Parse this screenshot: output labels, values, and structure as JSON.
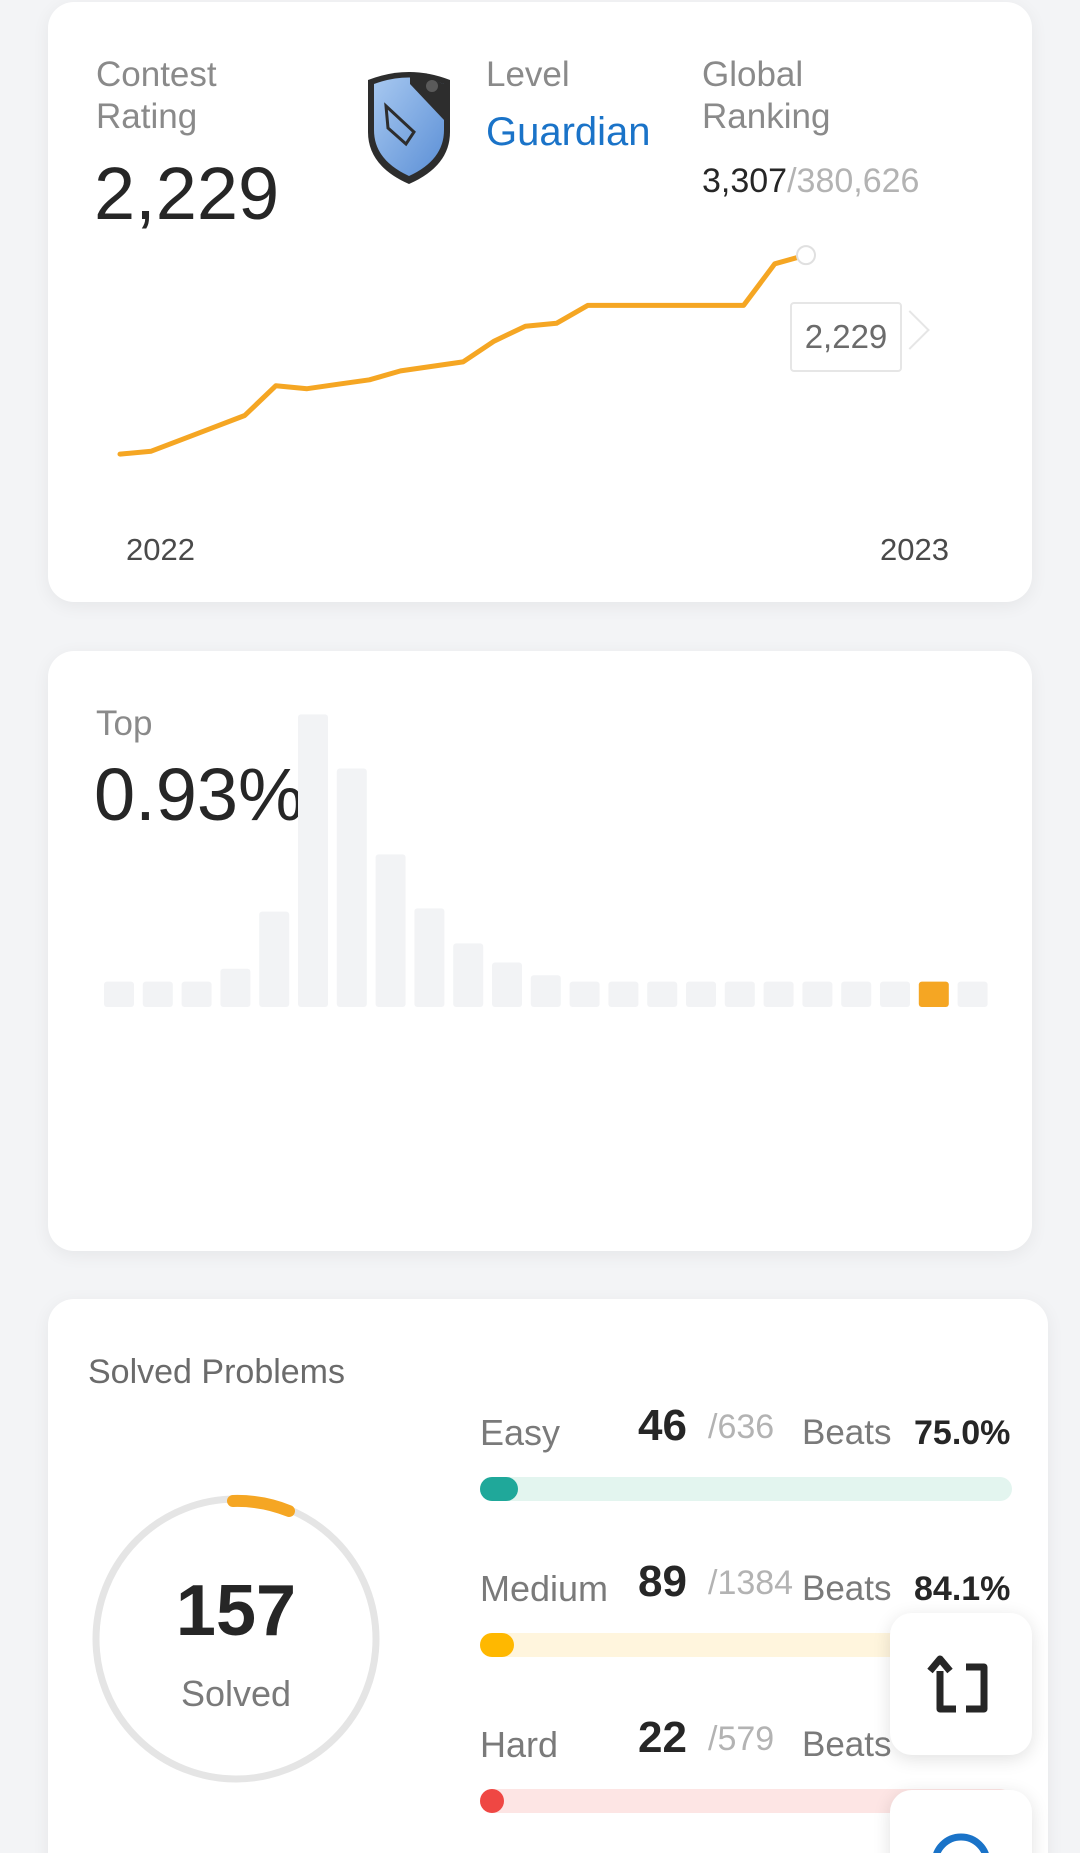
{
  "contest": {
    "rating_label": "Contest Rating",
    "rating_value": "2,229",
    "badge_icon": "guardian-badge-icon",
    "level_label": "Level",
    "level_value": "Guardian",
    "level_color": "#1a73c8",
    "ranking_label": "Global Ranking",
    "ranking_value": "3,307",
    "ranking_total": "/380,626",
    "tooltip_value": "2,229",
    "year_start": "2022",
    "year_end": "2023",
    "line_color": "#f5a623"
  },
  "top": {
    "label": "Top",
    "value": "0.93%",
    "bar_color": "#f2f3f5",
    "highlight_color": "#f5a623"
  },
  "solved": {
    "title": "Solved Problems",
    "count": "157",
    "count_label": "Solved",
    "difficulties": [
      {
        "name": "Easy",
        "solved": "46",
        "total": "/636",
        "beats_label": "Beats",
        "beats": "75.0%",
        "color": "#1fa89a",
        "track": "#e3f5ef",
        "progress": 0.072
      },
      {
        "name": "Medium",
        "solved": "89",
        "total": "/1384",
        "beats_label": "Beats",
        "beats": "84.1%",
        "color": "#ffb800",
        "track": "#fff5dd",
        "progress": 0.064
      },
      {
        "name": "Hard",
        "solved": "22",
        "total": "/579",
        "beats_label": "Beats",
        "beats": "",
        "color": "#ef4743",
        "track": "#fde5e4",
        "progress": 0.038
      }
    ]
  },
  "chart_data": [
    {
      "type": "line",
      "title": "",
      "xlabel": "",
      "ylabel": "",
      "x_ticks": [
        "2022",
        "2023"
      ],
      "x": [
        0,
        1,
        2,
        3,
        4,
        5,
        6,
        7,
        8,
        9,
        10,
        11,
        12,
        13,
        14,
        15,
        16,
        17,
        18,
        19,
        20,
        21,
        22
      ],
      "series": [
        {
          "values": [
            1560,
            1570,
            1610,
            1650,
            1690,
            1790,
            1780,
            1795,
            1810,
            1840,
            1855,
            1870,
            1940,
            1990,
            2000,
            2060,
            2060,
            2060,
            2060,
            2060,
            2060,
            2200,
            2229
          ]
        }
      ],
      "ylim": [
        1500,
        2300
      ],
      "grid": false,
      "highlight": {
        "label": "2,229"
      }
    },
    {
      "type": "bar",
      "title": "",
      "categories": [
        "1",
        "2",
        "3",
        "4",
        "5",
        "6",
        "7",
        "8",
        "9",
        "10",
        "11",
        "12",
        "13",
        "14",
        "15",
        "16",
        "17",
        "18",
        "19",
        "20",
        "21",
        "22",
        "23"
      ],
      "values": [
        8,
        8,
        8,
        12,
        30,
        92,
        75,
        48,
        31,
        20,
        14,
        10,
        8,
        8,
        8,
        8,
        8,
        8,
        8,
        8,
        8,
        8,
        8
      ],
      "highlight_index": 21,
      "ylim": [
        0,
        100
      ]
    }
  ]
}
